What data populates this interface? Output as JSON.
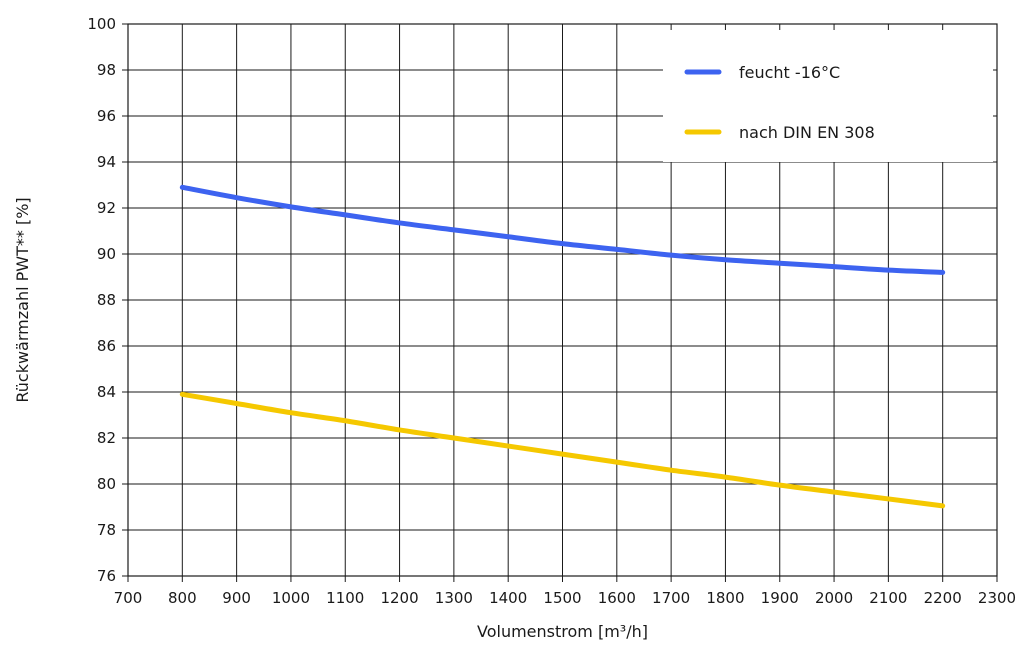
{
  "chart_data": {
    "type": "line",
    "xlabel": "Volumenstrom [m³/h]",
    "ylabel": "Rückwärmzahl PWT** [%]",
    "xlim": [
      700,
      2300
    ],
    "ylim": [
      76,
      100
    ],
    "x_ticks": [
      700,
      800,
      900,
      1000,
      1100,
      1200,
      1300,
      1400,
      1500,
      1600,
      1700,
      1800,
      1900,
      2000,
      2100,
      2200,
      2300
    ],
    "y_ticks": [
      76,
      78,
      80,
      82,
      84,
      86,
      88,
      90,
      92,
      94,
      96,
      98,
      100
    ],
    "grid": true,
    "legend_position": "top-right",
    "series": [
      {
        "name": "feucht -16°C",
        "color": "#3d63f0",
        "x": [
          800,
          900,
          1000,
          1100,
          1200,
          1300,
          1400,
          1500,
          1600,
          1700,
          1800,
          1900,
          2000,
          2100,
          2200
        ],
        "y": [
          92.9,
          92.45,
          92.05,
          91.7,
          91.35,
          91.05,
          90.75,
          90.45,
          90.2,
          89.95,
          89.75,
          89.6,
          89.45,
          89.3,
          89.2
        ]
      },
      {
        "name": "nach DIN EN 308",
        "color": "#f5c800",
        "x": [
          800,
          900,
          1000,
          1100,
          1200,
          1300,
          1400,
          1500,
          1600,
          1700,
          1800,
          1900,
          2000,
          2100,
          2200
        ],
        "y": [
          83.9,
          83.5,
          83.1,
          82.75,
          82.35,
          82.0,
          81.65,
          81.3,
          80.95,
          80.6,
          80.3,
          79.95,
          79.65,
          79.35,
          79.05
        ]
      }
    ]
  }
}
